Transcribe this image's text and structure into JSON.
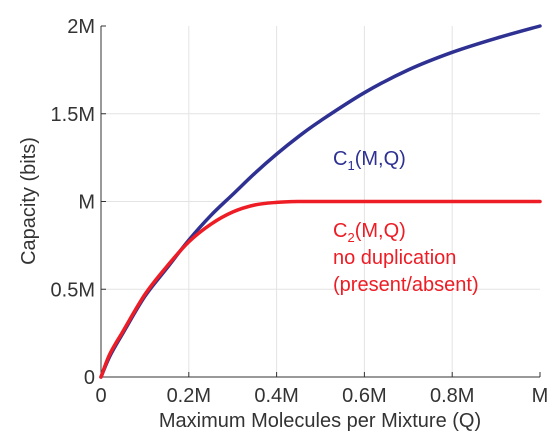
{
  "chart_data": {
    "type": "line",
    "xlabel": "Maximum Molecules per Mixture (Q)",
    "ylabel": "Capacity (bits)",
    "xlim": [
      0,
      1
    ],
    "ylim": [
      0,
      2
    ],
    "grid": true,
    "x_ticks": [
      {
        "value": 0,
        "label": "0"
      },
      {
        "value": 0.2,
        "label": "0.2M"
      },
      {
        "value": 0.4,
        "label": "0.4M"
      },
      {
        "value": 0.6,
        "label": "0.6M"
      },
      {
        "value": 0.8,
        "label": "0.8M"
      },
      {
        "value": 1.0,
        "label": "M"
      }
    ],
    "y_ticks": [
      {
        "value": 0,
        "label": "0"
      },
      {
        "value": 0.5,
        "label": "0.5M"
      },
      {
        "value": 1.0,
        "label": "M"
      },
      {
        "value": 1.5,
        "label": "1.5M"
      },
      {
        "value": 2.0,
        "label": "2M"
      }
    ],
    "x": [
      0,
      0.02,
      0.05,
      0.1,
      0.15,
      0.2,
      0.25,
      0.3,
      0.35,
      0.4,
      0.45,
      0.5,
      0.6,
      0.7,
      0.8,
      0.9,
      1.0
    ],
    "series": [
      {
        "name": "C1(M,Q)",
        "label_main": "C",
        "label_sub": "1",
        "label_rest": "(M,Q)",
        "label_lines": [],
        "color": "#2e3192",
        "values": [
          0,
          0.118,
          0.25,
          0.46,
          0.62,
          0.78,
          0.92,
          1.04,
          1.16,
          1.27,
          1.37,
          1.46,
          1.62,
          1.75,
          1.85,
          1.93,
          2.0
        ]
      },
      {
        "name": "C2(M,Q)",
        "label_main": "C",
        "label_sub": "2",
        "label_rest": "(M,Q)",
        "label_lines": [
          "no duplication",
          "(present/absent)"
        ],
        "color": "#ee1c24",
        "values": [
          0,
          0.13,
          0.26,
          0.47,
          0.63,
          0.77,
          0.87,
          0.94,
          0.98,
          0.995,
          1.0,
          1.0,
          1.0,
          1.0,
          1.0,
          1.0,
          1.0
        ]
      }
    ]
  }
}
